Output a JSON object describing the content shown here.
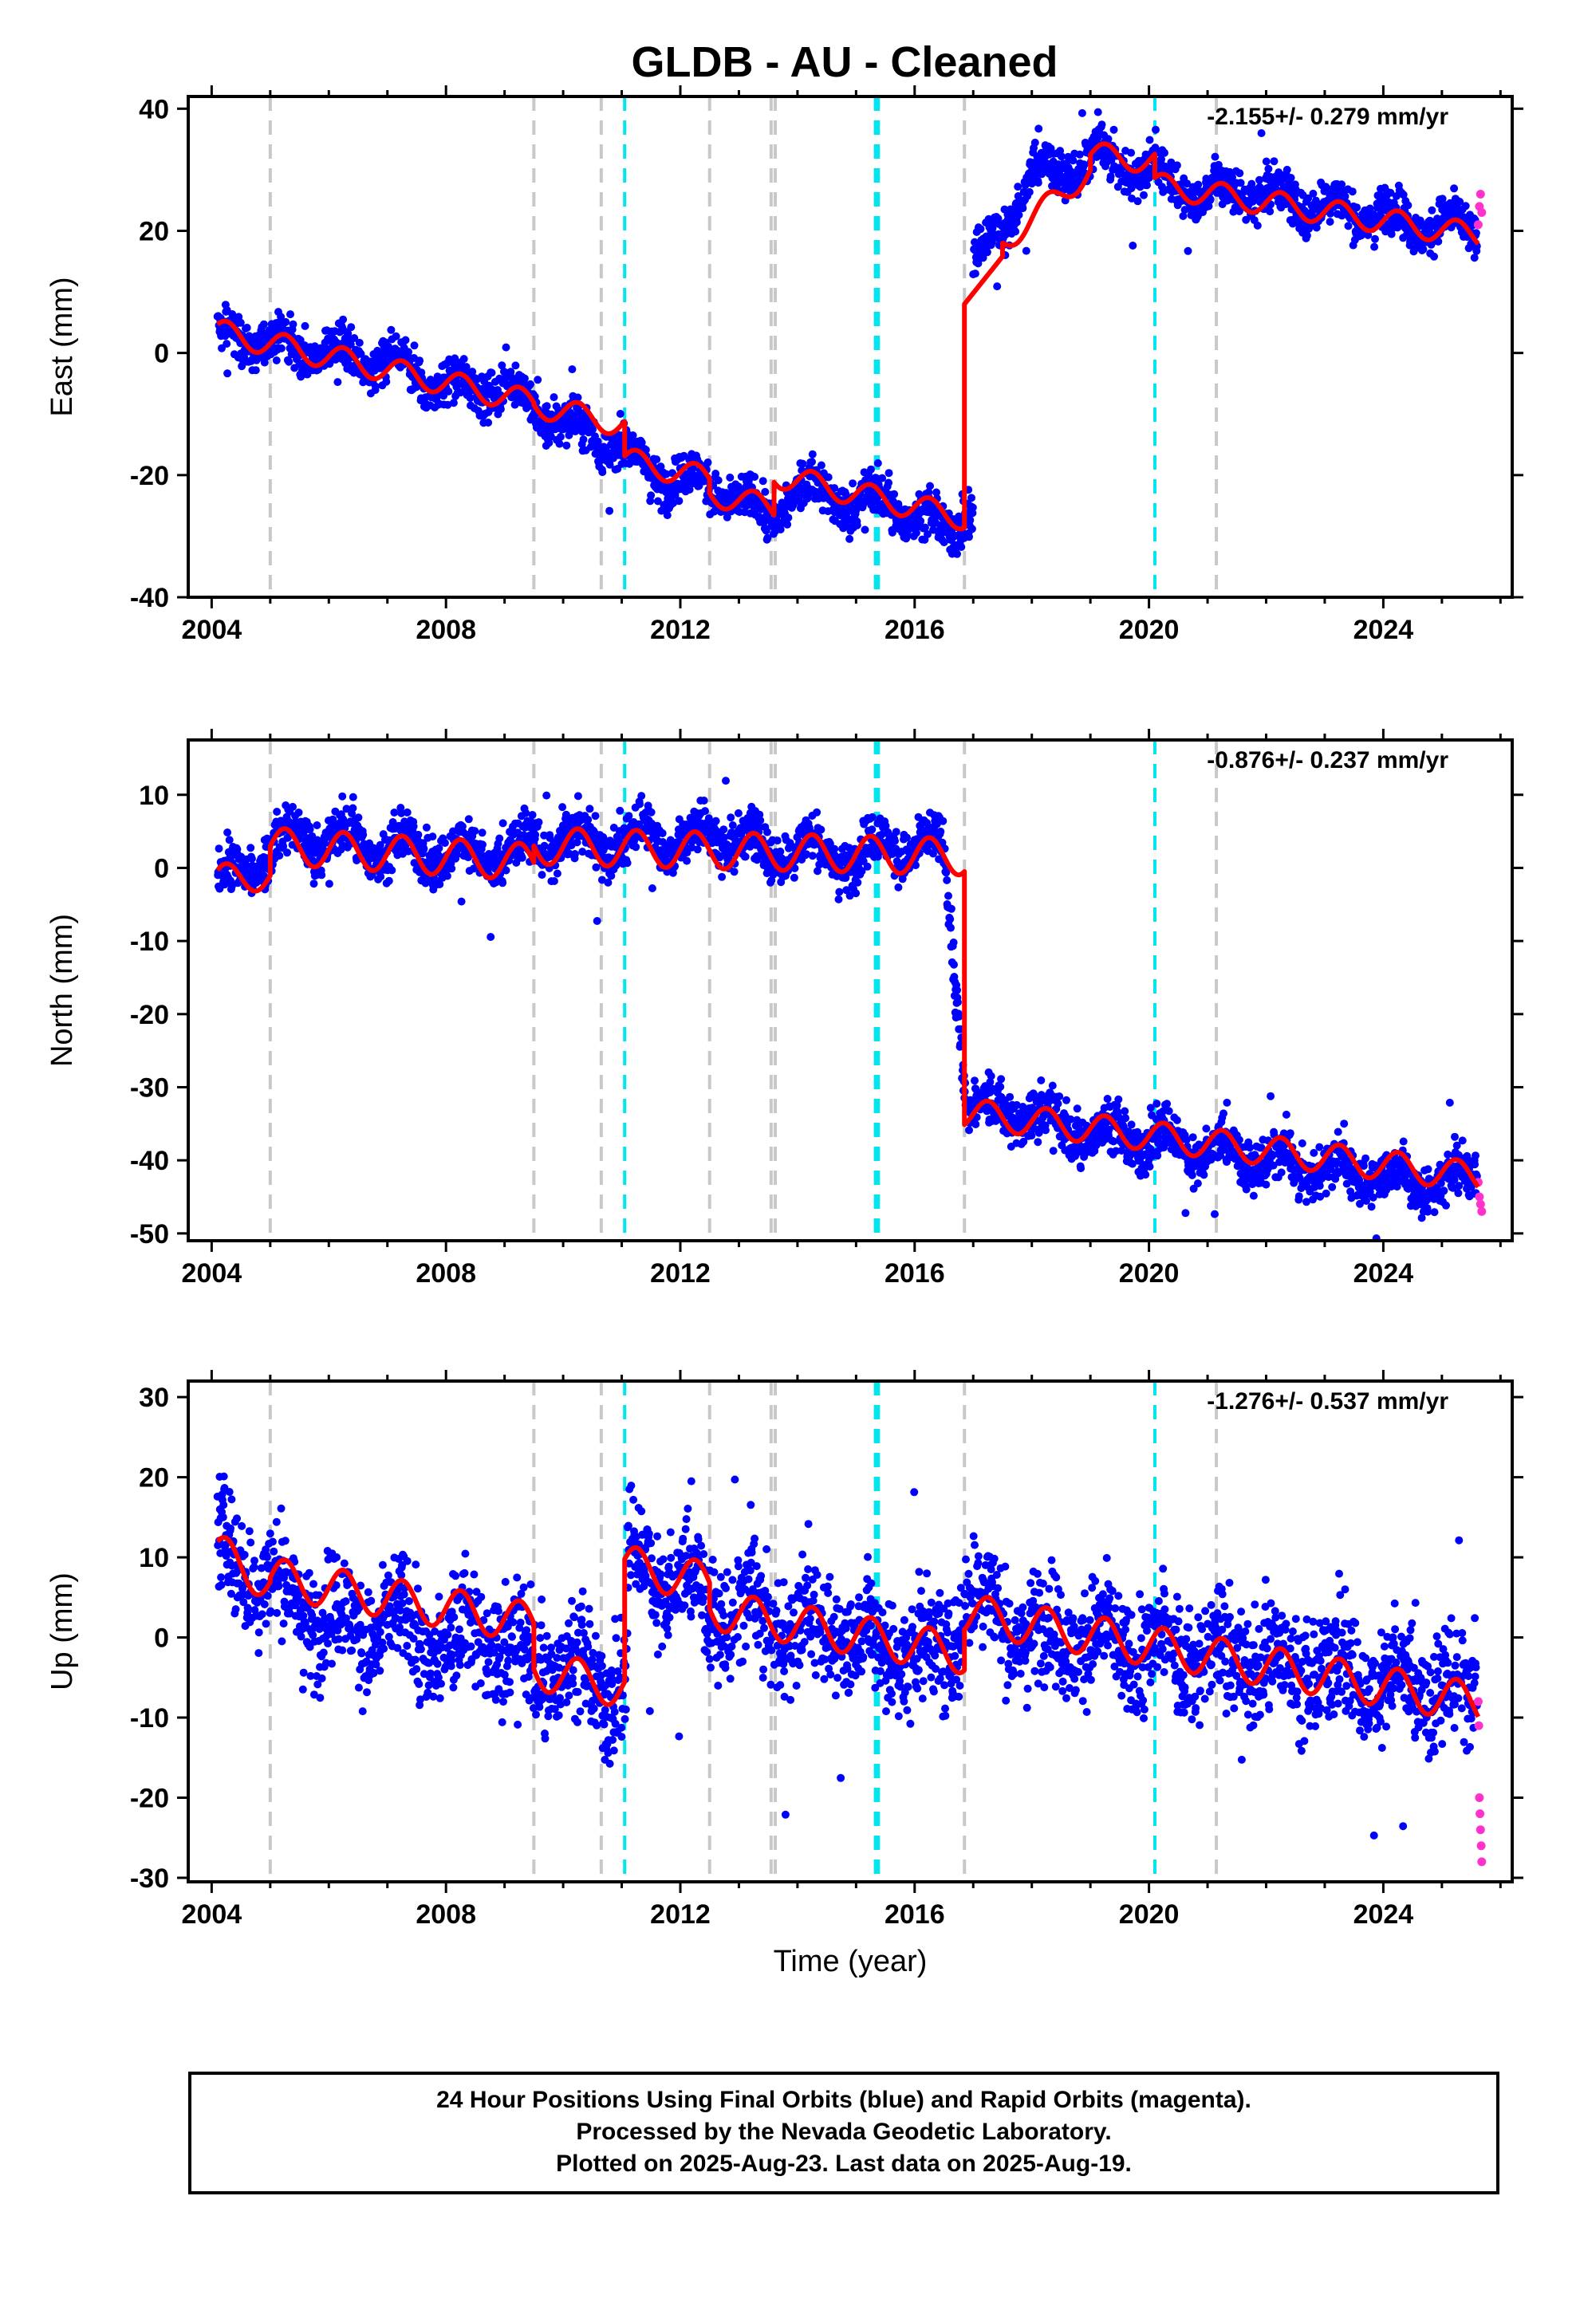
{
  "title": "GLDB  - AU - Cleaned",
  "colors": {
    "final_points": "#0000ff",
    "rapid_points": "#ff33cc",
    "model_line": "#ff0000",
    "equipment_change_line": "#c8c8c8",
    "earthquake_line": "#00e5ee"
  },
  "event_lines": {
    "gray": [
      2005.0,
      2009.5,
      2010.65,
      2012.5,
      2013.55,
      2013.62,
      2016.85,
      2021.15
    ],
    "cyan": [
      2011.05,
      2015.33,
      2015.38,
      2020.1
    ]
  },
  "chart_data": [
    {
      "type": "scatter",
      "component": "east",
      "ylabel": "East (mm)",
      "xlabel": "",
      "xlim": [
        2003.6,
        2026.2
      ],
      "ylim": [
        -40,
        42
      ],
      "x_ticks": [
        2004,
        2008,
        2012,
        2016,
        2020,
        2024
      ],
      "y_ticks": [
        -40,
        -20,
        0,
        20,
        40
      ],
      "rate_text": "-2.155+/- 0.279 mm/yr",
      "series": [
        {
          "name": "Final Orbits (blue)",
          "points_approx": [
            [
              2004.1,
              3
            ],
            [
              2004.5,
              2
            ],
            [
              2005.0,
              3
            ],
            [
              2005.5,
              0
            ],
            [
              2006.0,
              1
            ],
            [
              2006.5,
              -2
            ],
            [
              2007.0,
              -1
            ],
            [
              2007.5,
              -4
            ],
            [
              2008.0,
              -5
            ],
            [
              2008.5,
              -6
            ],
            [
              2009.0,
              -5
            ],
            [
              2009.5,
              -9
            ],
            [
              2010.0,
              -11
            ],
            [
              2010.5,
              -14
            ],
            [
              2011.0,
              -15
            ],
            [
              2011.5,
              -20
            ],
            [
              2012.0,
              -20
            ],
            [
              2012.5,
              -22
            ],
            [
              2013.0,
              -24
            ],
            [
              2013.5,
              -27
            ],
            [
              2014.0,
              -22
            ],
            [
              2014.5,
              -23
            ],
            [
              2015.0,
              -25
            ],
            [
              2015.5,
              -24
            ],
            [
              2016.0,
              -27
            ],
            [
              2016.5,
              -29
            ],
            [
              2016.9,
              -26
            ],
            [
              2017.0,
              15
            ],
            [
              2017.5,
              20
            ],
            [
              2018.0,
              30
            ],
            [
              2018.5,
              29
            ],
            [
              2019.0,
              33
            ],
            [
              2019.5,
              30
            ],
            [
              2020.0,
              31
            ],
            [
              2020.5,
              26
            ],
            [
              2021.0,
              27
            ],
            [
              2021.5,
              26
            ],
            [
              2022.0,
              27
            ],
            [
              2022.5,
              24
            ],
            [
              2023.0,
              25
            ],
            [
              2023.5,
              22
            ],
            [
              2024.0,
              24
            ],
            [
              2024.5,
              20
            ],
            [
              2025.0,
              22
            ],
            [
              2025.5,
              19
            ]
          ]
        },
        {
          "name": "Rapid Orbits (magenta)",
          "points_approx": [
            [
              2025.62,
              21
            ],
            [
              2025.64,
              24
            ],
            [
              2025.66,
              26
            ],
            [
              2025.68,
              23
            ]
          ]
        },
        {
          "name": "model",
          "model": {
            "segments": [
              {
                "t0": 2004.1,
                "t1": 2009.5,
                "a": 3.5,
                "r": -2.155,
                "amp": 2.0
              },
              {
                "t0": 2009.5,
                "t1": 2011.05,
                "a": -8.5,
                "r": -2.155,
                "amp": 2.0
              },
              {
                "t0": 2011.05,
                "t1": 2012.5,
                "a": -17.5,
                "r": -2.155,
                "amp": 2.0
              },
              {
                "t0": 2012.5,
                "t1": 2013.6,
                "a": -23.0,
                "r": -2.155,
                "amp": 2.0
              },
              {
                "t0": 2013.6,
                "t1": 2016.85,
                "a": -20.0,
                "r": -2.155,
                "amp": 2.0
              },
              {
                "t0": 2016.85,
                "t1": 2017.5,
                "a": 8.0,
                "r": 12.0,
                "amp": 0.0
              },
              {
                "t0": 2017.5,
                "t1": 2019.0,
                "a": 18.0,
                "r": 8.0,
                "amp": 2.0
              },
              {
                "t0": 2019.0,
                "t1": 2020.1,
                "a": 32.5,
                "r": -1.0,
                "amp": 2.0
              },
              {
                "t0": 2020.1,
                "t1": 2025.62,
                "a": 27.5,
                "r": -1.5,
                "amp": 2.0
              }
            ]
          }
        }
      ]
    },
    {
      "type": "scatter",
      "component": "north",
      "ylabel": "North (mm)",
      "xlabel": "",
      "xlim": [
        2003.6,
        2026.2
      ],
      "ylim": [
        -51,
        17.5
      ],
      "x_ticks": [
        2004,
        2008,
        2012,
        2016,
        2020,
        2024
      ],
      "y_ticks": [
        -50,
        -40,
        -30,
        -20,
        -10,
        0,
        10
      ],
      "rate_text": "-0.876+/- 0.237 mm/yr",
      "series": [
        {
          "name": "Final Orbits (blue)",
          "points_approx": [
            [
              2004.1,
              -2
            ],
            [
              2004.5,
              0
            ],
            [
              2005.0,
              2
            ],
            [
              2005.5,
              5
            ],
            [
              2006.0,
              3
            ],
            [
              2006.5,
              4
            ],
            [
              2007.0,
              2
            ],
            [
              2007.5,
              3
            ],
            [
              2008.0,
              1
            ],
            [
              2008.5,
              3
            ],
            [
              2009.0,
              1
            ],
            [
              2009.5,
              4
            ],
            [
              2010.0,
              3
            ],
            [
              2010.5,
              4
            ],
            [
              2011.0,
              3
            ],
            [
              2011.5,
              5
            ],
            [
              2012.0,
              3
            ],
            [
              2012.5,
              5
            ],
            [
              2013.0,
              4
            ],
            [
              2013.5,
              2
            ],
            [
              2014.0,
              3
            ],
            [
              2014.5,
              2
            ],
            [
              2015.0,
              1
            ],
            [
              2015.5,
              4
            ],
            [
              2016.0,
              2
            ],
            [
              2016.5,
              3
            ],
            [
              2016.9,
              -33
            ],
            [
              2017.5,
              -33
            ],
            [
              2018.0,
              -34
            ],
            [
              2018.5,
              -35
            ],
            [
              2019.0,
              -37
            ],
            [
              2019.5,
              -36
            ],
            [
              2020.0,
              -38
            ],
            [
              2020.5,
              -37
            ],
            [
              2021.0,
              -39
            ],
            [
              2021.5,
              -39
            ],
            [
              2022.0,
              -40
            ],
            [
              2022.5,
              -41
            ],
            [
              2023.0,
              -41
            ],
            [
              2023.5,
              -42
            ],
            [
              2024.0,
              -42
            ],
            [
              2024.5,
              -43
            ],
            [
              2025.0,
              -43
            ],
            [
              2025.5,
              -42
            ]
          ]
        },
        {
          "name": "Rapid Orbits (magenta)",
          "points_approx": [
            [
              2025.62,
              -43
            ],
            [
              2025.64,
              -45
            ],
            [
              2025.66,
              -46
            ],
            [
              2025.68,
              -47
            ]
          ]
        },
        {
          "name": "model",
          "model": {
            "segments": [
              {
                "t0": 2004.1,
                "t1": 2005.0,
                "a": -1.5,
                "r": 0.5,
                "amp": 2.0
              },
              {
                "t0": 2005.0,
                "t1": 2009.5,
                "a": 3.0,
                "r": -0.5,
                "amp": 2.5
              },
              {
                "t0": 2009.5,
                "t1": 2016.85,
                "a": 3.0,
                "r": -0.2,
                "amp": 2.5
              },
              {
                "t0": 2016.85,
                "t1": 2025.62,
                "a": -33.5,
                "r": -1.0,
                "amp": 2.0
              }
            ]
          }
        }
      ]
    },
    {
      "type": "scatter",
      "component": "up",
      "ylabel": "Up (mm)",
      "xlabel": "Time (year)",
      "xlim": [
        2003.6,
        2026.2
      ],
      "ylim": [
        -30.5,
        32
      ],
      "x_ticks": [
        2004,
        2008,
        2012,
        2016,
        2020,
        2024
      ],
      "y_ticks": [
        -30,
        -20,
        -10,
        0,
        10,
        20,
        30
      ],
      "rate_text": "-1.276+/- 0.537 mm/yr",
      "series": [
        {
          "name": "Final Orbits (blue)",
          "points_approx": [
            [
              2004.1,
              12
            ],
            [
              2004.5,
              8
            ],
            [
              2005.0,
              8
            ],
            [
              2005.5,
              3
            ],
            [
              2006.0,
              4
            ],
            [
              2006.5,
              0
            ],
            [
              2007.0,
              2
            ],
            [
              2007.5,
              0
            ],
            [
              2008.0,
              -1
            ],
            [
              2008.5,
              1
            ],
            [
              2009.0,
              -1
            ],
            [
              2009.5,
              -4
            ],
            [
              2010.0,
              -3
            ],
            [
              2010.5,
              -6
            ],
            [
              2011.0,
              -6
            ],
            [
              2011.1,
              10
            ],
            [
              2011.5,
              8
            ],
            [
              2012.0,
              8
            ],
            [
              2012.5,
              3
            ],
            [
              2013.0,
              4
            ],
            [
              2013.5,
              1
            ],
            [
              2014.0,
              2
            ],
            [
              2014.5,
              0
            ],
            [
              2015.0,
              1
            ],
            [
              2015.5,
              -2
            ],
            [
              2016.0,
              -1
            ],
            [
              2016.5,
              -3
            ],
            [
              2016.9,
              6
            ],
            [
              2017.5,
              2
            ],
            [
              2018.0,
              1
            ],
            [
              2018.5,
              0
            ],
            [
              2019.0,
              0
            ],
            [
              2019.5,
              -2
            ],
            [
              2020.0,
              -1
            ],
            [
              2020.5,
              -2
            ],
            [
              2021.0,
              -2
            ],
            [
              2021.5,
              -3
            ],
            [
              2022.0,
              -3
            ],
            [
              2022.5,
              -4
            ],
            [
              2023.0,
              -4
            ],
            [
              2023.5,
              -5
            ],
            [
              2024.0,
              -5
            ],
            [
              2024.5,
              -6
            ],
            [
              2025.0,
              -6
            ],
            [
              2025.5,
              -8
            ]
          ]
        },
        {
          "name": "Rapid Orbits (magenta)",
          "points_approx": [
            [
              2025.62,
              -8
            ],
            [
              2025.63,
              -11
            ],
            [
              2025.64,
              -20
            ],
            [
              2025.65,
              -22
            ],
            [
              2025.66,
              -24
            ],
            [
              2025.67,
              -26
            ],
            [
              2025.68,
              -28
            ]
          ]
        },
        {
          "name": "model",
          "model": {
            "segments": [
              {
                "t0": 2004.1,
                "t1": 2005.0,
                "a": 10.5,
                "r": -4.0,
                "amp": 2.5
              },
              {
                "t0": 2005.0,
                "t1": 2009.5,
                "a": 7.5,
                "r": -1.276,
                "amp": 2.5
              },
              {
                "t0": 2009.5,
                "t1": 2011.05,
                "a": -4.0,
                "r": -1.5,
                "amp": 2.5
              },
              {
                "t0": 2011.05,
                "t1": 2012.5,
                "a": 9.0,
                "r": -1.5,
                "amp": 2.5
              },
              {
                "t0": 2012.5,
                "t1": 2016.85,
                "a": 3.5,
                "r": -1.276,
                "amp": 2.5
              },
              {
                "t0": 2016.85,
                "t1": 2025.62,
                "a": 3.0,
                "r": -1.276,
                "amp": 2.5
              }
            ]
          }
        }
      ]
    }
  ],
  "footer": {
    "line1": "24 Hour Positions Using Final Orbits (blue) and Rapid Orbits (magenta).",
    "line2": "Processed by the Nevada Geodetic Laboratory.",
    "line3": "Plotted on 2025-Aug-23. Last data on 2025-Aug-19."
  }
}
